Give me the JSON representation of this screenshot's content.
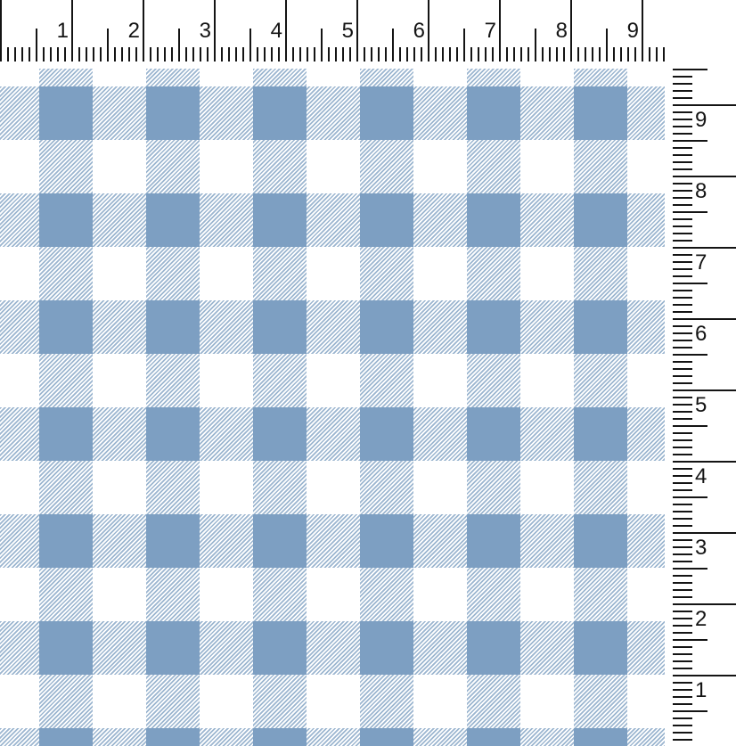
{
  "view": {
    "description": "Blue and white gingham check fabric swatch preview with inch rulers along the top and right edges",
    "pattern": "gingham-check",
    "colors": {
      "check_solid": "#7d9fc2",
      "check_hatch_line": "#9cb6d0",
      "fabric_background": "#ffffff",
      "ruler_background": "#ffffff",
      "ruler_tick": "#141414"
    }
  },
  "rulers": {
    "top": {
      "numbers": [
        "1",
        "2",
        "3",
        "4",
        "5",
        "6",
        "7",
        "8",
        "9"
      ]
    },
    "right": {
      "numbers": [
        "9",
        "8",
        "7",
        "6",
        "5",
        "4",
        "3",
        "2",
        "1"
      ]
    }
  }
}
